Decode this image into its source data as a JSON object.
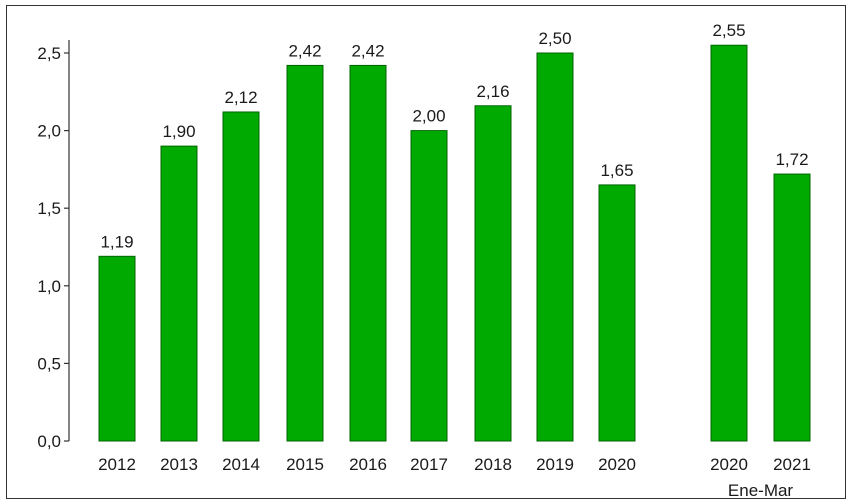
{
  "chart_data": {
    "type": "bar",
    "categories": [
      "2012",
      "2013",
      "2014",
      "2015",
      "2016",
      "2017",
      "2018",
      "2019",
      "2020",
      "2020",
      "2021"
    ],
    "values": [
      1.19,
      1.9,
      2.12,
      2.42,
      2.42,
      2.0,
      2.16,
      2.5,
      1.65,
      2.55,
      1.72
    ],
    "data_labels": [
      "1,19",
      "1,90",
      "2,12",
      "2,42",
      "2,42",
      "2,00",
      "2,16",
      "2,50",
      "1,65",
      "2,55",
      "1,72"
    ],
    "group_label": "Ene-Mar",
    "y_ticks": [
      0,
      0.5,
      1.0,
      1.5,
      2.0,
      2.5
    ],
    "y_tick_labels": [
      "0,0",
      "0,5",
      "1,0",
      "1,5",
      "2,0",
      "2,5"
    ],
    "ylim": [
      0,
      2.75
    ],
    "grid": false,
    "legend": "none",
    "title": "",
    "xlabel": "",
    "ylabel": "",
    "colors": {
      "bar_fill": "#00aa00",
      "bar_stroke": "#006400",
      "axis": "#333333"
    }
  }
}
